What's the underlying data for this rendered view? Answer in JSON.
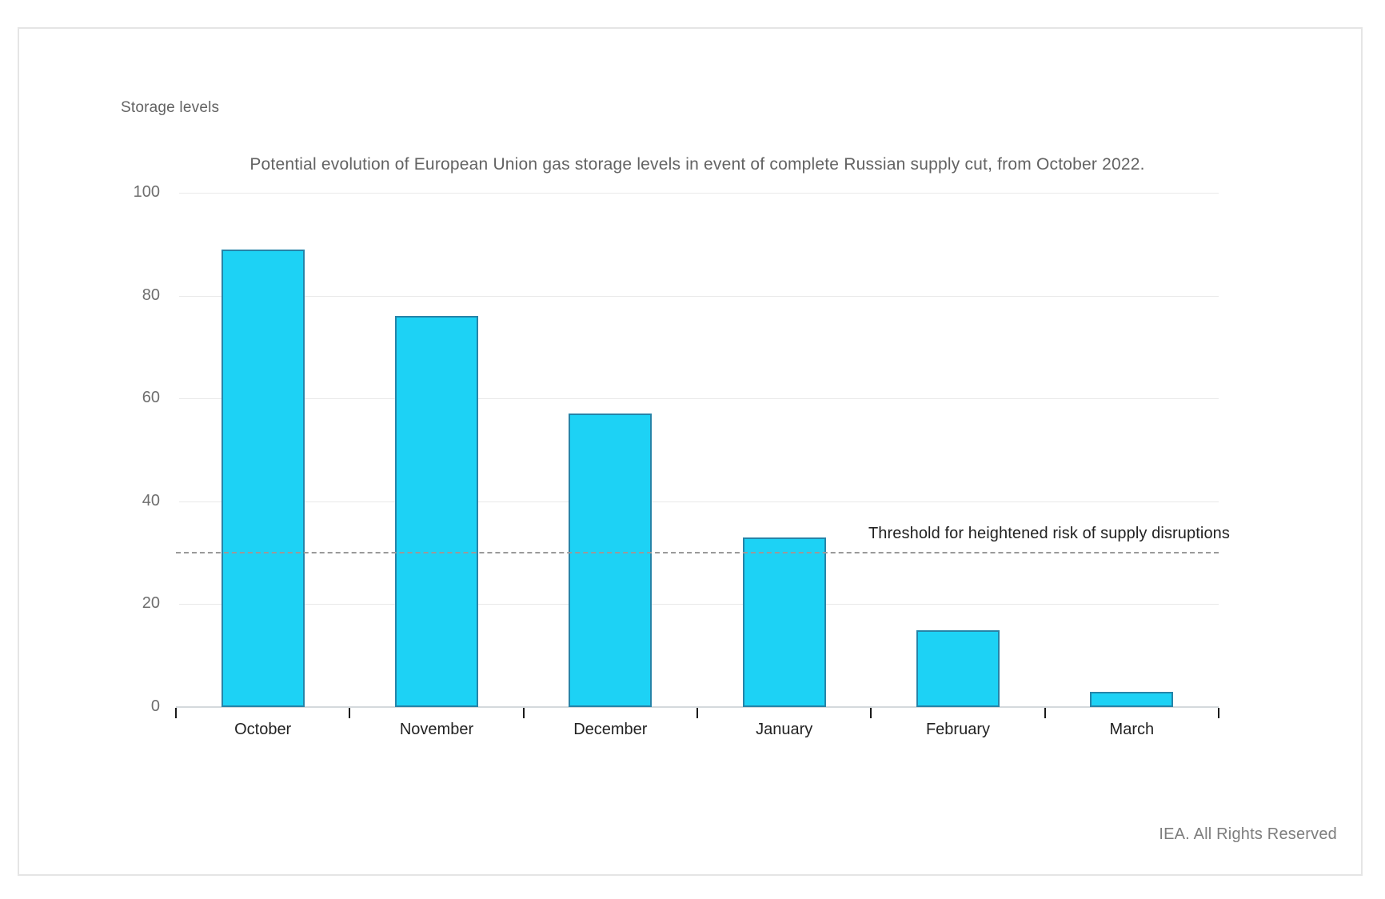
{
  "header": {
    "y_axis_unit_label": "Storage levels"
  },
  "chart_data": {
    "type": "bar",
    "title": "Potential evolution of European Union gas storage levels in event of complete Russian supply cut, from October 2022.",
    "categories": [
      "October",
      "November",
      "December",
      "January",
      "February",
      "March"
    ],
    "values": [
      89,
      76,
      57,
      33,
      15,
      3
    ],
    "xlabel": "",
    "ylabel": "Storage levels",
    "ylim": [
      0,
      100
    ],
    "yticks": [
      0,
      20,
      40,
      60,
      80,
      100
    ],
    "grid": "horizontal",
    "legend": "none",
    "threshold": {
      "value": 30,
      "label": "Threshold for heightened risk of supply disruptions",
      "style": "dashed"
    },
    "colors": {
      "bar_fill": "#1dd2f5",
      "bar_border": "#2684a8",
      "gridline": "#e9e9e9",
      "axis_line": "#d4d9dc",
      "tick_mark": "#1a1a1a",
      "threshold_line": "#9a9a9a",
      "title_text": "#636363",
      "axis_text": "#6e6e6e",
      "category_text": "#222222",
      "footer_text": "#7d7d7d"
    }
  },
  "footer": {
    "credit": "IEA. All Rights Reserved"
  }
}
